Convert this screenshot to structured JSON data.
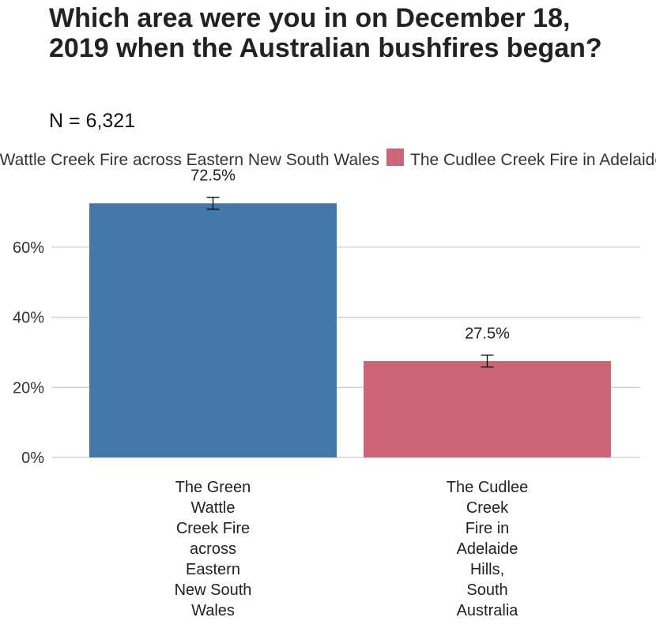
{
  "chart_data": {
    "type": "bar",
    "title": "Which area were you in on December 18, 2019 when the Australian bushfires began?",
    "subtitle": "N = 6,321",
    "categories": [
      [
        "The Green",
        "Wattle",
        "Creek Fire",
        "across",
        "Eastern",
        "New South",
        "Wales"
      ],
      [
        "The Cudlee",
        "Creek",
        "Fire in",
        "Adelaide",
        "Hills,",
        "South",
        "Australia"
      ]
    ],
    "legend": [
      {
        "label": "The Green Wattle Creek Fire across Eastern New South Wales",
        "color": "#4477aa"
      },
      {
        "label": "The Cudlee Creek Fire in Adelaide Hills, South Australia",
        "color": "#cc6677"
      }
    ],
    "values": [
      72.5,
      27.5
    ],
    "value_labels": [
      "72.5%",
      "27.5%"
    ],
    "error": [
      1.7,
      1.7
    ],
    "colors": [
      "#4477aa",
      "#cc6677"
    ],
    "ylim": [
      0,
      80
    ],
    "yticks": [
      0,
      20,
      40,
      60
    ],
    "ytick_labels": [
      "0%",
      "20%",
      "40%",
      "60%"
    ],
    "grid": true,
    "legend_position": "top"
  }
}
